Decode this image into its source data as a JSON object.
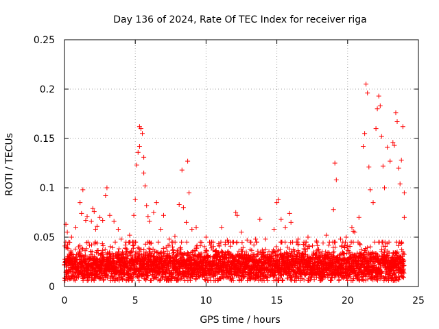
{
  "chart_data": {
    "type": "scatter",
    "title": "Day 136 of 2024, Rate Of TEC Index for receiver riga",
    "xlabel": "GPS time / hours",
    "ylabel": "ROTI / TECUs",
    "xlim": [
      0,
      25
    ],
    "ylim": [
      0,
      0.25
    ],
    "x_ticks": [
      0,
      5,
      10,
      15,
      20,
      25
    ],
    "x_tick_labels": [
      "0",
      "5",
      "10",
      "15",
      "20",
      "25"
    ],
    "y_ticks": [
      0,
      0.05,
      0.1,
      0.15,
      0.2,
      0.25
    ],
    "y_tick_labels": [
      "0",
      "0.05",
      "0.1",
      "0.15",
      "0.2",
      "0.25"
    ],
    "grid": true,
    "marker": "+",
    "color": "#ff0000",
    "baseline": {
      "x_start": 0,
      "x_end": 24,
      "y_min": 0.006,
      "y_max": 0.045,
      "typical": 0.02
    },
    "series": [
      {
        "name": "ROTI",
        "points": [
          [
            0.1,
            0.063
          ],
          [
            0.2,
            0.055
          ],
          [
            0.3,
            0.045
          ],
          [
            0.5,
            0.05
          ],
          [
            0.8,
            0.06
          ],
          [
            1.1,
            0.085
          ],
          [
            1.2,
            0.074
          ],
          [
            1.3,
            0.098
          ],
          [
            1.5,
            0.067
          ],
          [
            1.6,
            0.071
          ],
          [
            1.9,
            0.066
          ],
          [
            2.0,
            0.079
          ],
          [
            2.1,
            0.076
          ],
          [
            2.2,
            0.058
          ],
          [
            2.3,
            0.061
          ],
          [
            2.5,
            0.07
          ],
          [
            2.7,
            0.067
          ],
          [
            2.9,
            0.092
          ],
          [
            3.0,
            0.1
          ],
          [
            3.2,
            0.072
          ],
          [
            3.5,
            0.066
          ],
          [
            3.8,
            0.058
          ],
          [
            4.0,
            0.048
          ],
          [
            4.6,
            0.052
          ],
          [
            4.9,
            0.072
          ],
          [
            5.0,
            0.088
          ],
          [
            5.1,
            0.123
          ],
          [
            5.2,
            0.136
          ],
          [
            5.3,
            0.142
          ],
          [
            5.3,
            0.162
          ],
          [
            5.4,
            0.16
          ],
          [
            5.5,
            0.155
          ],
          [
            5.6,
            0.131
          ],
          [
            5.6,
            0.115
          ],
          [
            5.7,
            0.102
          ],
          [
            5.8,
            0.082
          ],
          [
            5.9,
            0.071
          ],
          [
            6.0,
            0.066
          ],
          [
            6.3,
            0.075
          ],
          [
            6.5,
            0.085
          ],
          [
            6.8,
            0.058
          ],
          [
            7.0,
            0.072
          ],
          [
            7.4,
            0.048
          ],
          [
            7.8,
            0.051
          ],
          [
            8.1,
            0.083
          ],
          [
            8.3,
            0.118
          ],
          [
            8.4,
            0.08
          ],
          [
            8.6,
            0.065
          ],
          [
            8.7,
            0.127
          ],
          [
            8.8,
            0.095
          ],
          [
            9.0,
            0.058
          ],
          [
            9.3,
            0.06
          ],
          [
            9.6,
            0.045
          ],
          [
            10.0,
            0.05
          ],
          [
            10.5,
            0.045
          ],
          [
            11.1,
            0.06
          ],
          [
            11.5,
            0.047
          ],
          [
            12.1,
            0.075
          ],
          [
            12.2,
            0.072
          ],
          [
            12.5,
            0.055
          ],
          [
            12.9,
            0.047
          ],
          [
            13.5,
            0.048
          ],
          [
            13.8,
            0.068
          ],
          [
            14.2,
            0.048
          ],
          [
            14.8,
            0.058
          ],
          [
            15.0,
            0.085
          ],
          [
            15.1,
            0.088
          ],
          [
            15.3,
            0.068
          ],
          [
            15.6,
            0.06
          ],
          [
            15.9,
            0.074
          ],
          [
            16.0,
            0.065
          ],
          [
            16.5,
            0.048
          ],
          [
            17.2,
            0.05
          ],
          [
            17.8,
            0.046
          ],
          [
            18.5,
            0.052
          ],
          [
            19.0,
            0.078
          ],
          [
            19.1,
            0.125
          ],
          [
            19.2,
            0.108
          ],
          [
            19.5,
            0.048
          ],
          [
            19.9,
            0.05
          ],
          [
            20.3,
            0.06
          ],
          [
            20.4,
            0.056
          ],
          [
            20.5,
            0.055
          ],
          [
            20.8,
            0.07
          ],
          [
            21.1,
            0.142
          ],
          [
            21.2,
            0.155
          ],
          [
            21.3,
            0.205
          ],
          [
            21.4,
            0.196
          ],
          [
            21.5,
            0.121
          ],
          [
            21.6,
            0.098
          ],
          [
            21.8,
            0.085
          ],
          [
            22.0,
            0.16
          ],
          [
            22.1,
            0.18
          ],
          [
            22.2,
            0.193
          ],
          [
            22.3,
            0.183
          ],
          [
            22.4,
            0.152
          ],
          [
            22.5,
            0.122
          ],
          [
            22.6,
            0.1
          ],
          [
            22.8,
            0.141
          ],
          [
            23.0,
            0.127
          ],
          [
            23.2,
            0.146
          ],
          [
            23.3,
            0.143
          ],
          [
            23.4,
            0.176
          ],
          [
            23.5,
            0.167
          ],
          [
            23.6,
            0.12
          ],
          [
            23.7,
            0.104
          ],
          [
            23.8,
            0.128
          ],
          [
            23.9,
            0.162
          ],
          [
            24.0,
            0.095
          ],
          [
            24.0,
            0.07
          ]
        ]
      }
    ]
  }
}
